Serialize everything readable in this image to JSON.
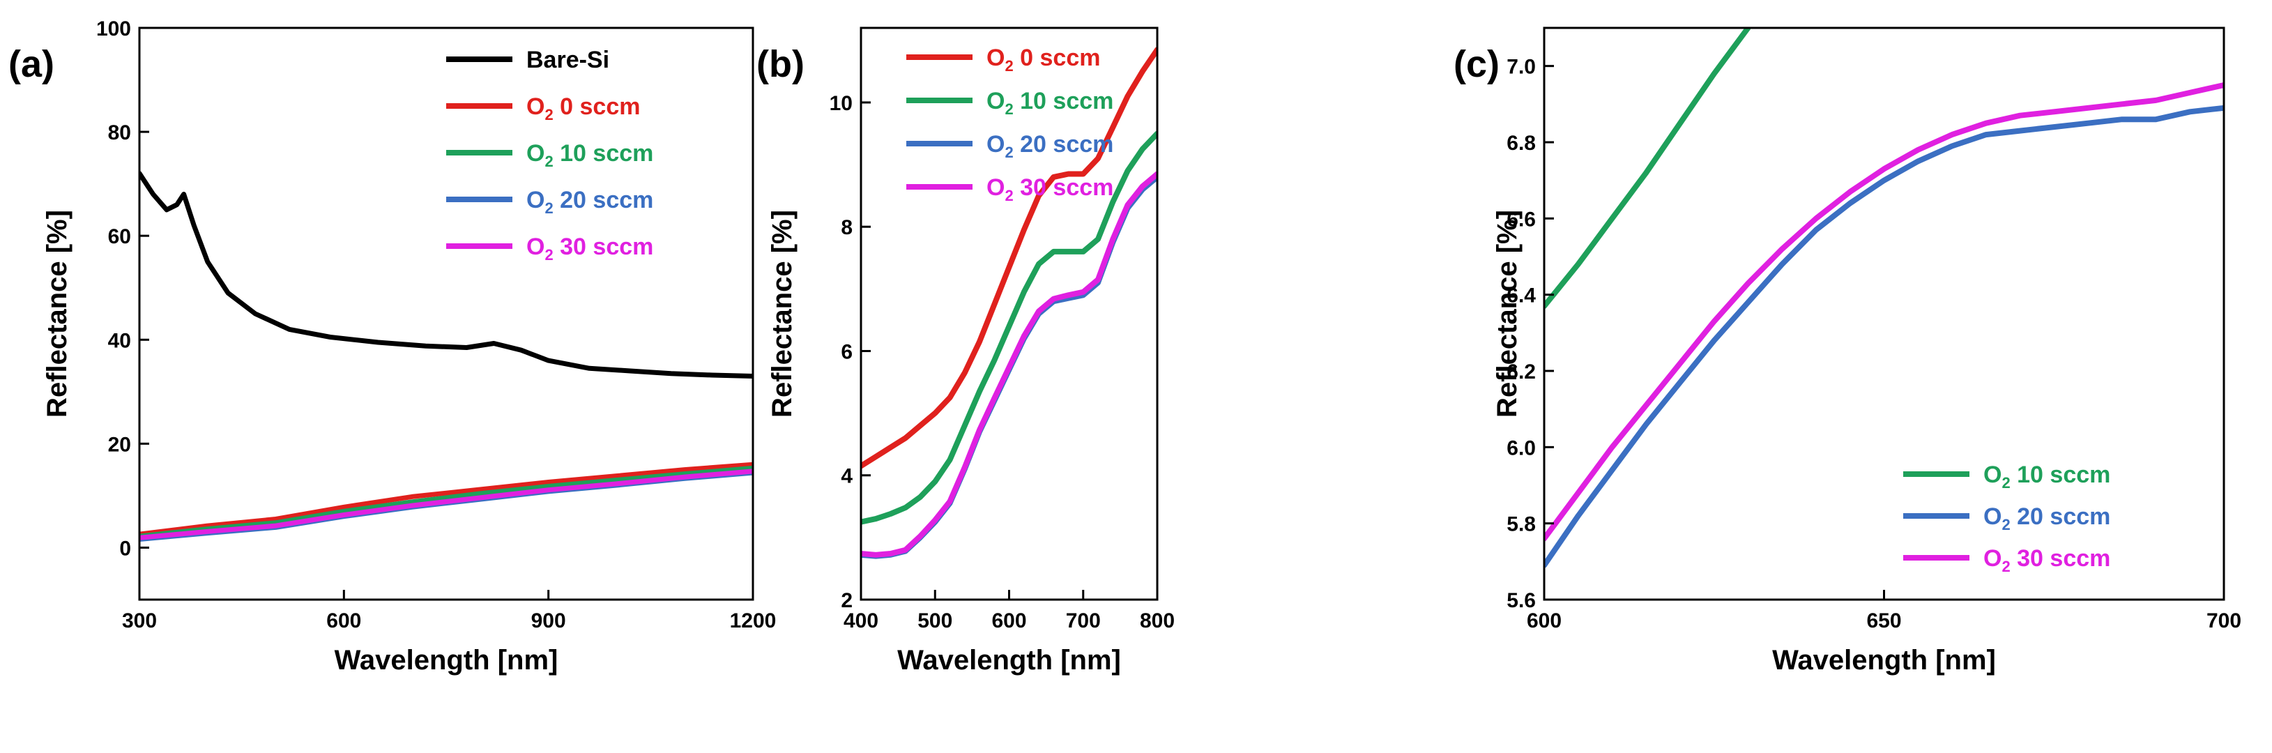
{
  "chart_data": [
    {
      "type": "line",
      "panel_label": "(a)",
      "xlabel": "Wavelength [nm]",
      "ylabel": "Reflectance [%]",
      "xlim": [
        300,
        1200
      ],
      "ylim": [
        -10,
        100
      ],
      "xticks": [
        300,
        600,
        900,
        1200
      ],
      "yticks": [
        0,
        20,
        40,
        60,
        80,
        100
      ],
      "legend_position": "top-right",
      "series": [
        {
          "name": "Bare-Si",
          "legend_main": "Bare-Si",
          "legend_sub": "",
          "legend_suffix": "",
          "color": "#000000",
          "x": [
            300,
            320,
            340,
            355,
            365,
            380,
            400,
            430,
            470,
            520,
            580,
            650,
            720,
            780,
            820,
            860,
            900,
            960,
            1020,
            1080,
            1140,
            1200
          ],
          "y": [
            72,
            68,
            65,
            66,
            68,
            62,
            55,
            49,
            45,
            42,
            40.5,
            39.5,
            38.8,
            38.5,
            39.3,
            38,
            36,
            34.5,
            34,
            33.5,
            33.2,
            33
          ]
        },
        {
          "name": "O2 0 sccm",
          "legend_main": "O",
          "legend_sub": "2",
          "legend_suffix": " 0 sccm",
          "color": "#e0211d",
          "x": [
            300,
            400,
            500,
            600,
            700,
            800,
            900,
            1000,
            1100,
            1200
          ],
          "y": [
            2.6,
            4.2,
            5.5,
            7.8,
            9.8,
            11.2,
            12.6,
            13.8,
            15,
            16
          ]
        },
        {
          "name": "O2 10 sccm",
          "legend_main": "O",
          "legend_sub": "2",
          "legend_suffix": " 10 sccm",
          "color": "#1ea05a",
          "x": [
            300,
            400,
            500,
            600,
            700,
            800,
            900,
            1000,
            1100,
            1200
          ],
          "y": [
            2.2,
            3.6,
            4.8,
            7,
            8.8,
            10.4,
            11.8,
            13,
            14.2,
            15.3
          ]
        },
        {
          "name": "O2 20 sccm",
          "legend_main": "O",
          "legend_sub": "2",
          "legend_suffix": " 20 sccm",
          "color": "#3b6fc2",
          "x": [
            300,
            400,
            500,
            600,
            700,
            800,
            900,
            1000,
            1100,
            1200
          ],
          "y": [
            1.6,
            2.8,
            3.9,
            6,
            7.8,
            9.3,
            10.8,
            12,
            13.3,
            14.4
          ]
        },
        {
          "name": "O2 30 sccm",
          "legend_main": "O",
          "legend_sub": "2",
          "legend_suffix": " 30 sccm",
          "color": "#e020e0",
          "x": [
            300,
            400,
            500,
            600,
            700,
            800,
            900,
            1000,
            1100,
            1200
          ],
          "y": [
            1.9,
            3.1,
            4.2,
            6.3,
            8.1,
            9.6,
            11.1,
            12.3,
            13.6,
            14.7
          ]
        }
      ]
    },
    {
      "type": "line",
      "panel_label": "(b)",
      "xlabel": "Wavelength [nm]",
      "ylabel": "Reflectance [%]",
      "xlim": [
        400,
        800
      ],
      "ylim": [
        2,
        11.2
      ],
      "xticks": [
        400,
        500,
        600,
        700,
        800
      ],
      "yticks": [
        2,
        4,
        6,
        8,
        10
      ],
      "legend_position": "top-left",
      "series": [
        {
          "name": "O2 0 sccm",
          "legend_main": "O",
          "legend_sub": "2",
          "legend_suffix": " 0 sccm",
          "color": "#e0211d",
          "x": [
            400,
            420,
            440,
            460,
            480,
            500,
            520,
            540,
            560,
            580,
            600,
            620,
            640,
            660,
            680,
            700,
            720,
            740,
            760,
            780,
            800
          ],
          "y": [
            4.15,
            4.3,
            4.45,
            4.6,
            4.8,
            5.0,
            5.25,
            5.65,
            6.15,
            6.75,
            7.35,
            7.95,
            8.5,
            8.8,
            8.85,
            8.85,
            9.1,
            9.6,
            10.1,
            10.5,
            10.85
          ]
        },
        {
          "name": "O2 10 sccm",
          "legend_main": "O",
          "legend_sub": "2",
          "legend_suffix": " 10 sccm",
          "color": "#1ea05a",
          "x": [
            400,
            420,
            440,
            460,
            480,
            500,
            520,
            540,
            560,
            580,
            600,
            620,
            640,
            660,
            680,
            700,
            720,
            740,
            760,
            780,
            800
          ],
          "y": [
            3.25,
            3.3,
            3.38,
            3.48,
            3.65,
            3.9,
            4.25,
            4.8,
            5.35,
            5.85,
            6.4,
            6.95,
            7.4,
            7.6,
            7.6,
            7.6,
            7.8,
            8.4,
            8.9,
            9.25,
            9.5
          ]
        },
        {
          "name": "O2 20 sccm",
          "legend_main": "O",
          "legend_sub": "2",
          "legend_suffix": " 20 sccm",
          "color": "#3b6fc2",
          "x": [
            400,
            420,
            440,
            460,
            480,
            500,
            520,
            540,
            560,
            580,
            600,
            620,
            640,
            660,
            680,
            700,
            720,
            740,
            760,
            780,
            800
          ],
          "y": [
            2.72,
            2.7,
            2.72,
            2.78,
            3.0,
            3.25,
            3.55,
            4.1,
            4.7,
            5.2,
            5.7,
            6.2,
            6.6,
            6.8,
            6.85,
            6.9,
            7.1,
            7.75,
            8.3,
            8.6,
            8.8
          ]
        },
        {
          "name": "O2 30 sccm",
          "legend_main": "O",
          "legend_sub": "2",
          "legend_suffix": " 30 sccm",
          "color": "#e020e0",
          "x": [
            400,
            420,
            440,
            460,
            480,
            500,
            520,
            540,
            560,
            580,
            600,
            620,
            640,
            660,
            680,
            700,
            720,
            740,
            760,
            780,
            800
          ],
          "y": [
            2.74,
            2.72,
            2.74,
            2.8,
            3.02,
            3.28,
            3.58,
            4.13,
            4.73,
            5.24,
            5.74,
            6.24,
            6.64,
            6.84,
            6.9,
            6.95,
            7.15,
            7.8,
            8.35,
            8.65,
            8.85
          ]
        }
      ]
    },
    {
      "type": "line",
      "panel_label": "(c)",
      "xlabel": "Wavelength [nm]",
      "ylabel": "Reflectance [%]",
      "xlim": [
        600,
        700
      ],
      "ylim": [
        5.6,
        7.1
      ],
      "xticks": [
        600,
        650,
        700
      ],
      "yticks": [
        5.6,
        5.8,
        6.0,
        6.2,
        6.4,
        6.6,
        6.8,
        7.0
      ],
      "legend_position": "bottom-right",
      "series": [
        {
          "name": "O2 10 sccm",
          "legend_main": "O",
          "legend_sub": "2",
          "legend_suffix": " 10 sccm",
          "color": "#1ea05a",
          "x": [
            600,
            605,
            610,
            615,
            620,
            625,
            630
          ],
          "y": [
            6.37,
            6.48,
            6.6,
            6.72,
            6.85,
            6.98,
            7.1
          ]
        },
        {
          "name": "O2 20 sccm",
          "legend_main": "O",
          "legend_sub": "2",
          "legend_suffix": " 20 sccm",
          "color": "#3b6fc2",
          "x": [
            600,
            605,
            610,
            615,
            620,
            625,
            630,
            635,
            640,
            645,
            650,
            655,
            660,
            665,
            670,
            675,
            680,
            685,
            690,
            695,
            700
          ],
          "y": [
            5.69,
            5.82,
            5.94,
            6.06,
            6.17,
            6.28,
            6.38,
            6.48,
            6.57,
            6.64,
            6.7,
            6.75,
            6.79,
            6.82,
            6.83,
            6.84,
            6.85,
            6.86,
            6.86,
            6.88,
            6.89
          ]
        },
        {
          "name": "O2 30 sccm",
          "legend_main": "O",
          "legend_sub": "2",
          "legend_suffix": " 30 sccm",
          "color": "#e020e0",
          "x": [
            600,
            605,
            610,
            615,
            620,
            625,
            630,
            635,
            640,
            645,
            650,
            655,
            660,
            665,
            670,
            675,
            680,
            685,
            690,
            695,
            700
          ],
          "y": [
            5.76,
            5.88,
            6.0,
            6.11,
            6.22,
            6.33,
            6.43,
            6.52,
            6.6,
            6.67,
            6.73,
            6.78,
            6.82,
            6.85,
            6.87,
            6.88,
            6.89,
            6.9,
            6.91,
            6.93,
            6.95
          ]
        }
      ]
    }
  ]
}
